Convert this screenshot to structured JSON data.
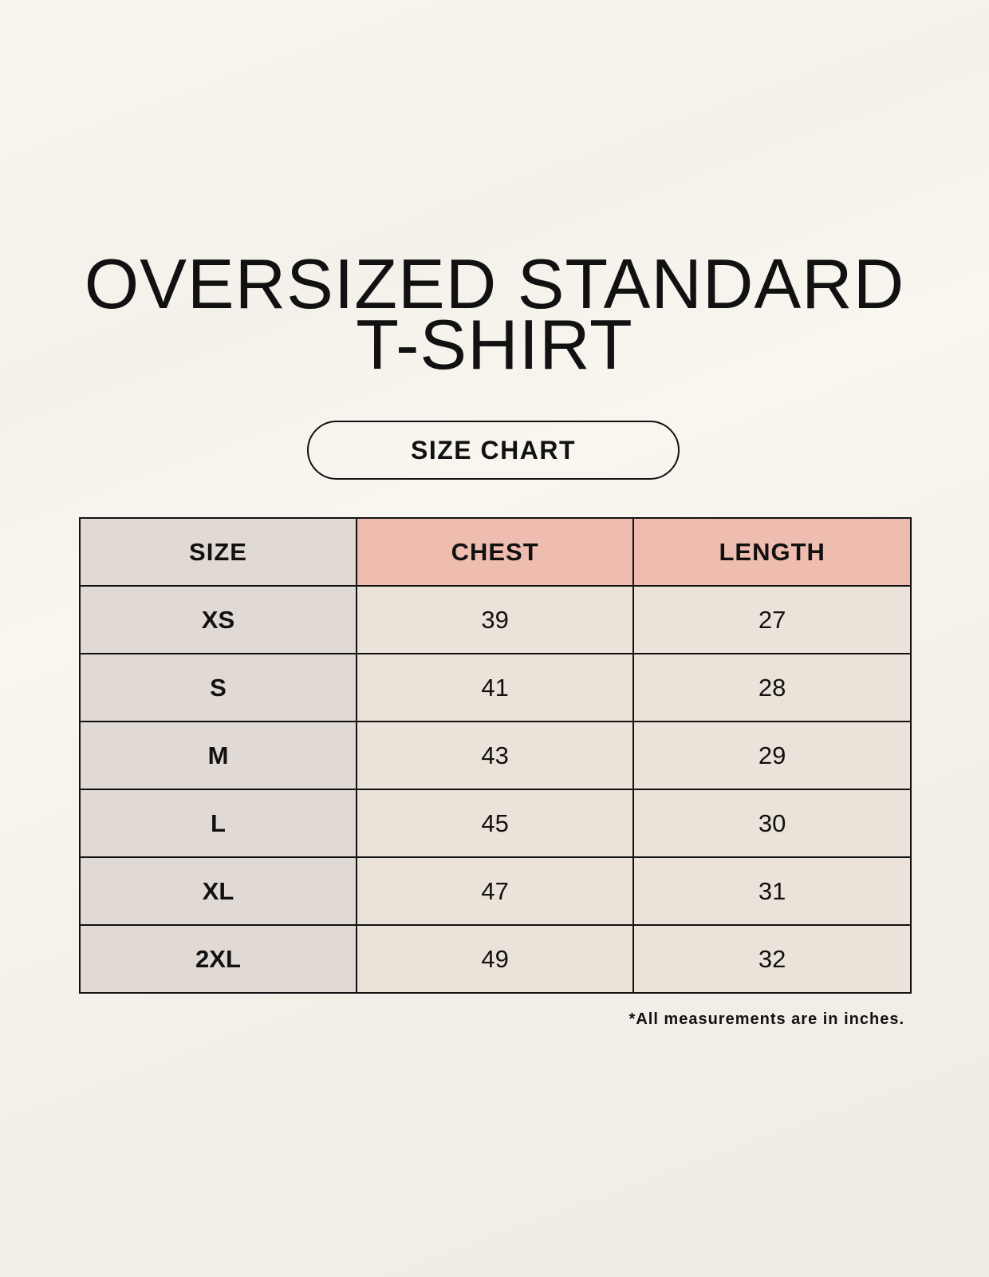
{
  "title": {
    "line1": "OVERSIZED STANDARD",
    "line2": "T-SHIRT"
  },
  "badge": "SIZE CHART",
  "colors": {
    "size_column": "#e0d9d4",
    "header_accent": "#efbdaf",
    "cell": "#ebe3d9"
  },
  "table": {
    "headers": [
      "SIZE",
      "CHEST",
      "LENGTH"
    ],
    "rows": [
      [
        "XS",
        "39",
        "27"
      ],
      [
        "S",
        "41",
        "28"
      ],
      [
        "M",
        "43",
        "29"
      ],
      [
        "L",
        "45",
        "30"
      ],
      [
        "XL",
        "47",
        "31"
      ],
      [
        "2XL",
        "49",
        "32"
      ]
    ]
  },
  "footnote": "*All measurements are in inches."
}
